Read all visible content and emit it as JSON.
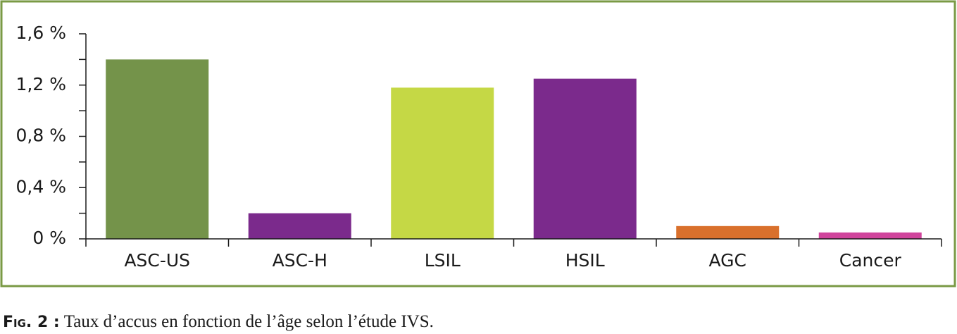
{
  "chart_data": {
    "type": "bar",
    "categories": [
      "ASC-US",
      "ASC-H",
      "LSIL",
      "HSIL",
      "AGC",
      "Cancer"
    ],
    "values": [
      1.4,
      0.2,
      1.18,
      1.25,
      0.1,
      0.05
    ],
    "colors": [
      "#74934a",
      "#7b2a8c",
      "#c5d845",
      "#7b2a8c",
      "#d9702c",
      "#d0449c"
    ],
    "ylim": [
      0,
      1.6
    ],
    "yticks": [
      {
        "value": 0,
        "label": "0 %"
      },
      {
        "value": 0.4,
        "label": "0,4 %"
      },
      {
        "value": 0.8,
        "label": "0,8 %"
      },
      {
        "value": 1.2,
        "label": "1,2 %"
      },
      {
        "value": 1.6,
        "label": "1,6 %"
      }
    ],
    "yminorticks": [
      0.2,
      0.6,
      1.0,
      1.4
    ],
    "border_color": "#7a9a45",
    "caption": {
      "label": "Fig. 2 :",
      "text": "Taux d’accus en fonction de l’âge selon l’étude IVS."
    }
  }
}
